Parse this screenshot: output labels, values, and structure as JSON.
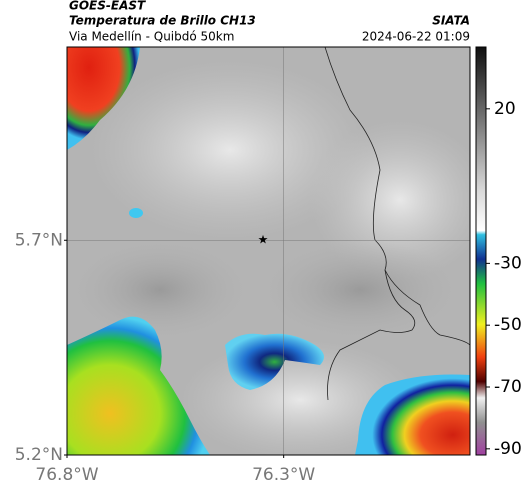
{
  "header": {
    "satellite": "GOES-EAST",
    "product": "Temperatura de Brillo CH13",
    "region": "Via Medellín - Quibdó 50km",
    "source": "SIATA",
    "timestamp": "2024-06-22 01:09"
  },
  "map": {
    "latlim": [
      5.2,
      6.15
    ],
    "lonlim": [
      -76.8,
      -75.87
    ],
    "lat_ticks": [
      {
        "value": 5.7,
        "label": "5.7°N"
      },
      {
        "value": 5.2,
        "label": "5.2°N"
      }
    ],
    "lon_ticks": [
      {
        "value": -76.8,
        "label": "76.8°W"
      },
      {
        "value": -76.3,
        "label": "76.3°W"
      }
    ],
    "grid": true
  },
  "colorbar": {
    "lim": [
      40,
      -92
    ],
    "ticks": [
      20,
      -30,
      -50,
      -70,
      -90
    ]
  }
}
